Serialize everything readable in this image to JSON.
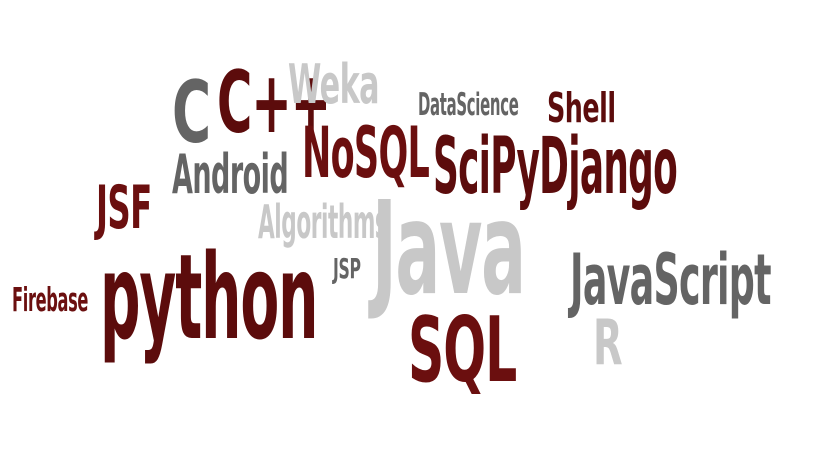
{
  "words": [
    {
      "text": "C",
      "color": "#646464"
    },
    {
      "text": "C++",
      "color": "#5c0c0c"
    },
    {
      "text": "Weka",
      "color": "#c8c8c8"
    },
    {
      "text": "DataScience",
      "color": "#646464"
    },
    {
      "text": "Shell",
      "color": "#5c0c0c"
    },
    {
      "text": "NoSQL",
      "color": "#6b0f0f"
    },
    {
      "text": "SciPyDjango",
      "color": "#5c0c0c"
    },
    {
      "text": "Android",
      "color": "#646464"
    },
    {
      "text": "JSF",
      "color": "#6b0f0f"
    },
    {
      "text": "Algorithms",
      "color": "#c8c8c8"
    },
    {
      "text": "Java",
      "color": "#c8c8c8"
    },
    {
      "text": "JSP",
      "color": "#646464"
    },
    {
      "text": "Firebase",
      "color": "#6b0f0f"
    },
    {
      "text": "python",
      "color": "#5c0c0c"
    },
    {
      "text": "JavaScript",
      "color": "#646464"
    },
    {
      "text": "SQL",
      "color": "#6b0f0f"
    },
    {
      "text": "R",
      "color": "#c8c8c8"
    }
  ]
}
